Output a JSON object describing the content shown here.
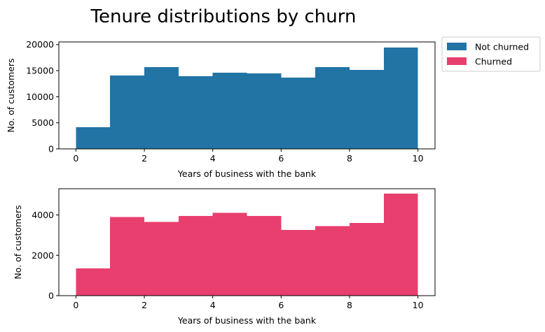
{
  "title": "Tenure distributions by churn",
  "legend": {
    "placement": "upper-right-outside",
    "items": [
      {
        "label": "Not churned",
        "color": "#2274a5"
      },
      {
        "label": "Churned",
        "color": "#e83f6f"
      }
    ]
  },
  "chart_data": [
    {
      "type": "bar",
      "series_name": "Not churned",
      "color": "#2274a5",
      "bin_edges": [
        0,
        1,
        2,
        3,
        4,
        5,
        6,
        7,
        8,
        9,
        10
      ],
      "values": [
        4150,
        14100,
        15700,
        13950,
        14600,
        14450,
        13700,
        15700,
        15150,
        19450
      ],
      "xlabel": "Years of business with the bank",
      "ylabel": "No. of customers",
      "xlim": [
        -0.5,
        10.5
      ],
      "ylim": [
        0,
        20500
      ],
      "xticks": [
        0,
        2,
        4,
        6,
        8,
        10
      ],
      "yticks": [
        0,
        5000,
        10000,
        15000,
        20000
      ]
    },
    {
      "type": "bar",
      "series_name": "Churned",
      "color": "#e83f6f",
      "bin_edges": [
        0,
        1,
        2,
        3,
        4,
        5,
        6,
        7,
        8,
        9,
        10
      ],
      "values": [
        1350,
        3900,
        3650,
        3950,
        4100,
        3950,
        3250,
        3450,
        3600,
        5050
      ],
      "xlabel": "Years of business with the bank",
      "ylabel": "No. of customers",
      "xlim": [
        -0.5,
        10.5
      ],
      "ylim": [
        0,
        5300
      ],
      "xticks": [
        0,
        2,
        4,
        6,
        8,
        10
      ],
      "yticks": [
        0,
        2000,
        4000
      ]
    }
  ]
}
